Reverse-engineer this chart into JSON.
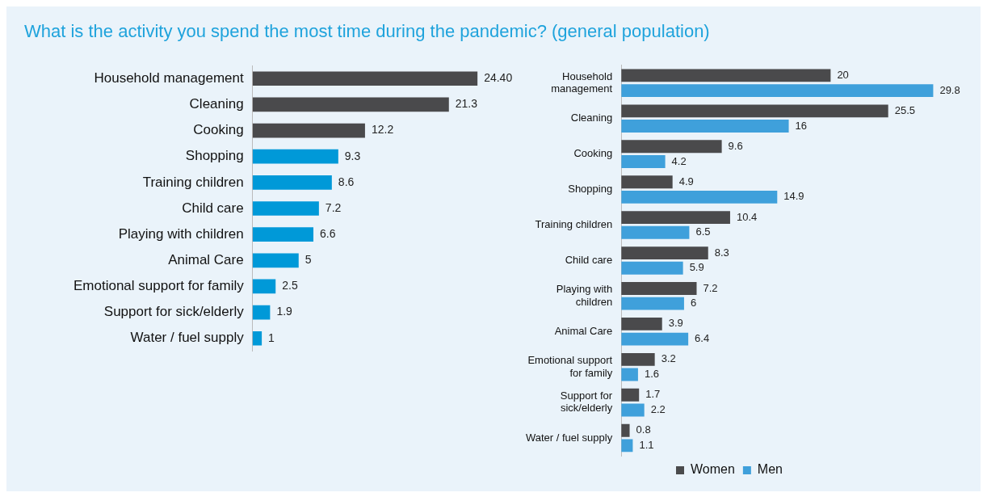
{
  "chart_data": [
    {
      "type": "bar",
      "orientation": "horizontal",
      "title": "What is the activity you spend the most time during the pandemic? (general population)",
      "categories": [
        "Household management",
        "Cleaning",
        "Cooking",
        "Shopping",
        "Training children",
        "Child care",
        "Playing with children",
        "Animal Care",
        "Emotional support for family",
        "Support for sick/elderly",
        "Water / fuel supply"
      ],
      "values": [
        24.4,
        21.3,
        12.2,
        9.3,
        8.6,
        7.2,
        6.6,
        5,
        2.5,
        1.9,
        1
      ],
      "value_labels": [
        "24.40",
        "21.3",
        "12.2",
        "9.3",
        "8.6",
        "7.2",
        "6.6",
        "5",
        "2.5",
        "1.9",
        "1"
      ],
      "colors": [
        "#4a4a4c",
        "#4a4a4c",
        "#4a4a4c",
        "#0099d8",
        "#0099d8",
        "#0099d8",
        "#0099d8",
        "#0099d8",
        "#0099d8",
        "#0099d8",
        "#0099d8"
      ],
      "legend": false
    },
    {
      "type": "bar",
      "orientation": "horizontal",
      "categories": [
        "Household management",
        "Cleaning",
        "Cooking",
        "Shopping",
        "Training children",
        "Child care",
        "Playing with children",
        "Animal Care",
        "Emotional support for family",
        "Support for sick/elderly",
        "Water / fuel supply"
      ],
      "series": [
        {
          "name": "Women",
          "color": "#4a4a4c",
          "values": [
            20,
            25.5,
            9.6,
            4.9,
            10.4,
            8.3,
            7.2,
            3.9,
            3.2,
            1.7,
            0.8
          ]
        },
        {
          "name": "Men",
          "color": "#3fa0db",
          "values": [
            29.8,
            16,
            4.2,
            14.9,
            6.5,
            5.9,
            6,
            6.4,
            1.6,
            2.2,
            1.1
          ]
        }
      ],
      "data_labels": true,
      "legend": "bottom"
    }
  ]
}
